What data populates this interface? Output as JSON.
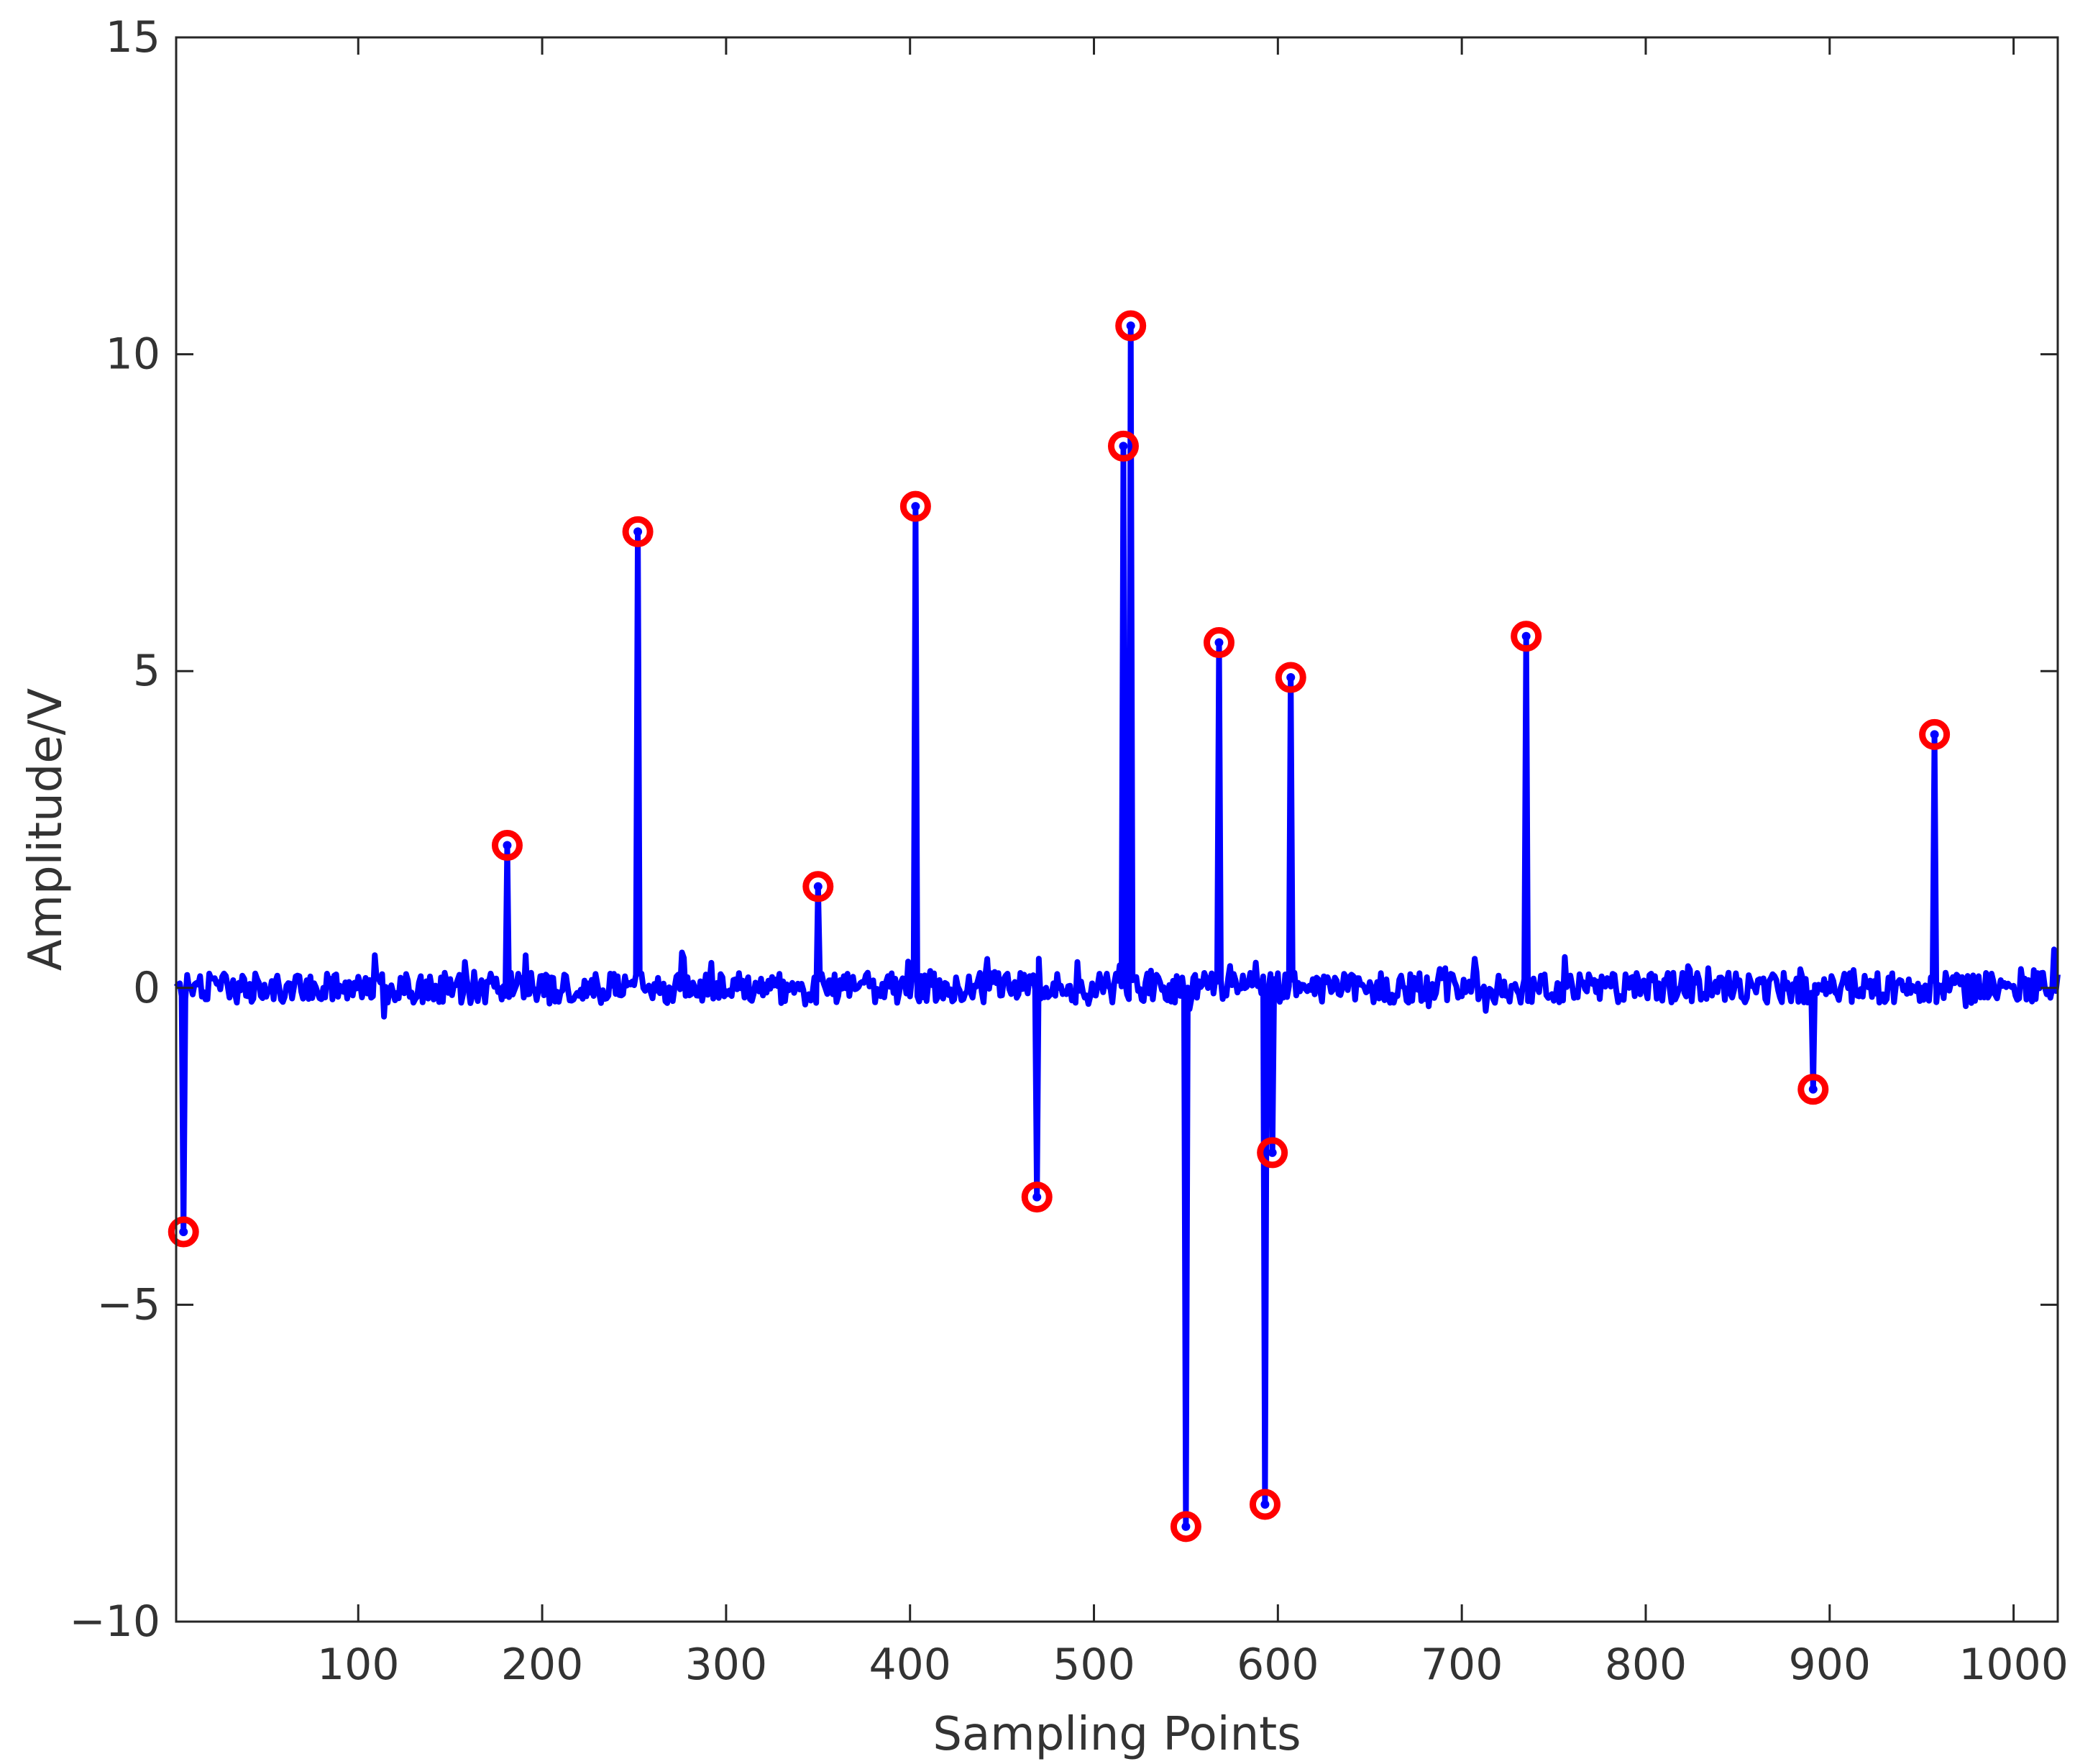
{
  "chart_data": {
    "type": "line",
    "title": "",
    "xlabel": "Sampling Points",
    "ylabel": "Amplitude/V",
    "xlim": [
      1,
      1024
    ],
    "ylim": [
      -10,
      15
    ],
    "xticks": [
      100,
      200,
      300,
      400,
      500,
      600,
      700,
      800,
      900,
      1000
    ],
    "xtick_labels": [
      "100",
      "200",
      "300",
      "400",
      "500",
      "600",
      "700",
      "800",
      "900",
      "1000"
    ],
    "yticks": [
      -10,
      -5,
      0,
      5,
      10,
      15
    ],
    "ytick_labels": [
      "−10",
      "−5",
      "0",
      "5",
      "10",
      "15"
    ],
    "grid": false,
    "box": true,
    "line_color": "#0000ff",
    "marker_edge_color": "#ff0000",
    "peak_dot_color": "#0000ff",
    "noise_amplitude": 0.3,
    "peaks": [
      {
        "x": 5,
        "y": -3.85
      },
      {
        "x": 181,
        "y": 2.25
      },
      {
        "x": 252,
        "y": 7.2
      },
      {
        "x": 350,
        "y": 1.6
      },
      {
        "x": 403,
        "y": 7.6
      },
      {
        "x": 469,
        "y": -3.3
      },
      {
        "x": 516,
        "y": 8.55
      },
      {
        "x": 520,
        "y": 10.45
      },
      {
        "x": 550,
        "y": -8.5
      },
      {
        "x": 568,
        "y": 5.45
      },
      {
        "x": 593,
        "y": -8.15
      },
      {
        "x": 597,
        "y": -2.6
      },
      {
        "x": 607,
        "y": 4.9
      },
      {
        "x": 735,
        "y": 5.55
      },
      {
        "x": 891,
        "y": -1.6
      },
      {
        "x": 957,
        "y": 4.0
      }
    ]
  }
}
